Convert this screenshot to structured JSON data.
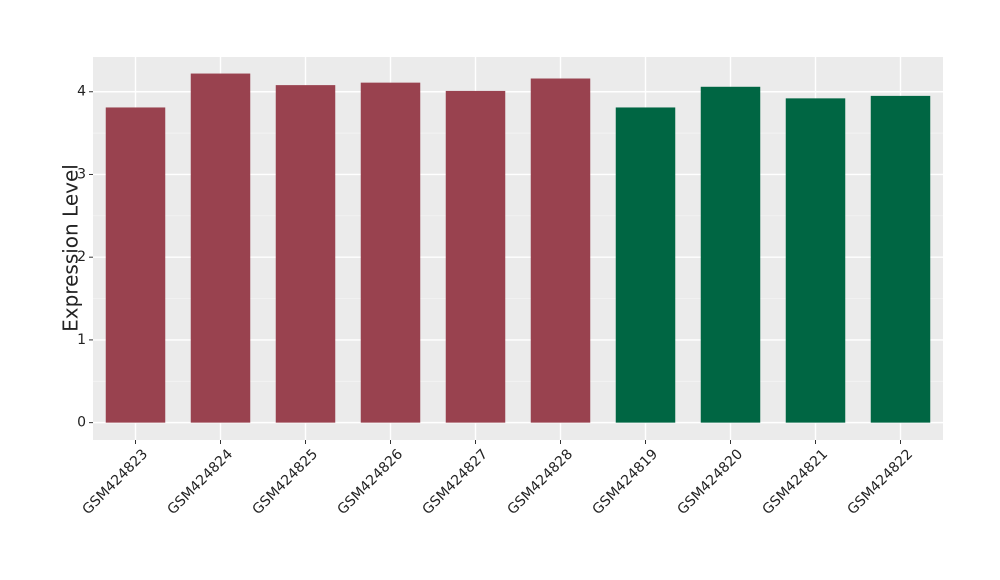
{
  "chart_data": {
    "type": "bar",
    "y_label": "Expression Level",
    "categories": [
      "GSM424823",
      "GSM424824",
      "GSM424825",
      "GSM424826",
      "GSM424827",
      "GSM424828",
      "GSM424819",
      "GSM424820",
      "GSM424821",
      "GSM424822"
    ],
    "values": [
      3.81,
      4.22,
      4.08,
      4.11,
      4.01,
      4.16,
      3.81,
      4.06,
      3.92,
      3.95
    ],
    "colors": [
      "#99424f",
      "#99424f",
      "#99424f",
      "#99424f",
      "#99424f",
      "#99424f",
      "#006643",
      "#006643",
      "#006643",
      "#006643"
    ],
    "ylim": [
      -0.21,
      4.42
    ],
    "yticks": [
      0,
      1,
      2,
      3,
      4
    ],
    "grid": true
  }
}
